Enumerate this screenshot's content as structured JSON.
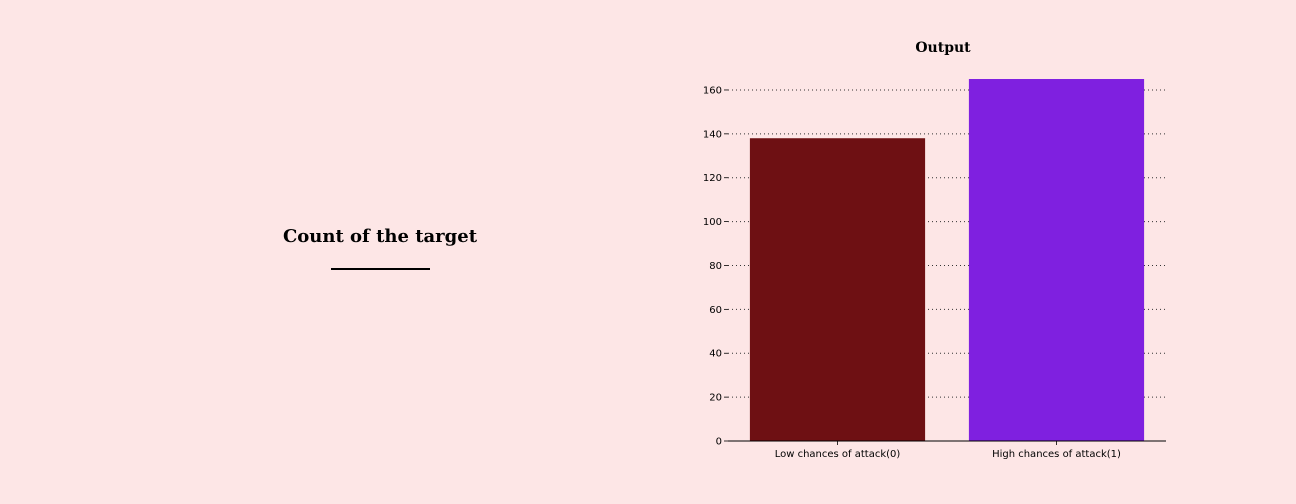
{
  "left_panel": {
    "title": "Count of the target"
  },
  "chart_data": {
    "type": "bar",
    "title": "Output",
    "xlabel": "",
    "ylabel": "",
    "categories": [
      "Low chances of attack(0)",
      "High chances of attack(1)"
    ],
    "values": [
      138,
      165
    ],
    "colors": [
      "#6e1013",
      "#7f20e0"
    ],
    "background": "#fde6e6",
    "ylim": [
      0,
      165
    ],
    "yticks": [
      0,
      20,
      40,
      60,
      80,
      100,
      120,
      140,
      160
    ],
    "grid": "horizontal-dotted"
  }
}
